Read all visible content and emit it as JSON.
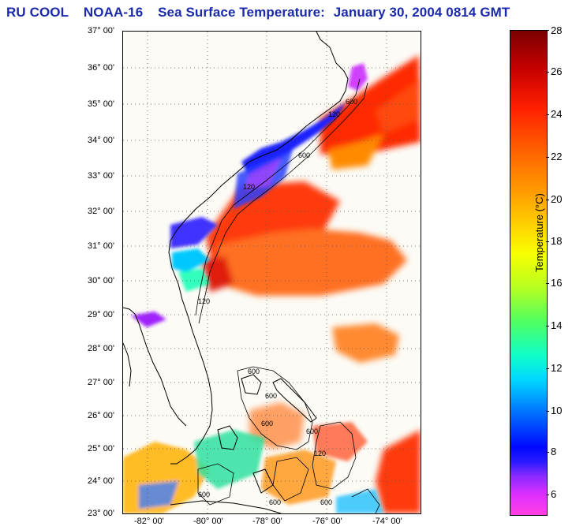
{
  "title": {
    "org": "RU COOL",
    "satellite": "NOAA-16",
    "product": "Sea Surface Temperature:",
    "date_time": "January 30, 2004 0814 GMT"
  },
  "latitude_labels": [
    "37° 00'",
    "36° 00'",
    "35° 00'",
    "34° 00'",
    "33° 00'",
    "32° 00'",
    "31° 00'",
    "30° 00'",
    "29° 00'",
    "28° 00'",
    "27° 00'",
    "26° 00'",
    "25° 00'",
    "24° 00'",
    "23° 00'"
  ],
  "longitude_labels": [
    "-82° 00'",
    "-80° 00'",
    "-78° 00'",
    "-76° 00'",
    "-74° 00'"
  ],
  "isobath_labels": [
    "600",
    "120",
    "600",
    "120",
    "120",
    "600",
    "600",
    "600",
    "600",
    "120",
    "600",
    "600",
    "600"
  ],
  "colorbar": {
    "title": "Temperature (°C)",
    "ticks": [
      "28",
      "26",
      "24",
      "22",
      "20",
      "18",
      "16",
      "14",
      "12",
      "10",
      "8",
      "6"
    ],
    "colors": {
      "hot": "#7a0000",
      "warm": "#ff2000",
      "mid": "#f8ff00",
      "cool": "#00d8ff",
      "cold": "#0008ff",
      "coldest": "#ff40e0"
    }
  }
}
